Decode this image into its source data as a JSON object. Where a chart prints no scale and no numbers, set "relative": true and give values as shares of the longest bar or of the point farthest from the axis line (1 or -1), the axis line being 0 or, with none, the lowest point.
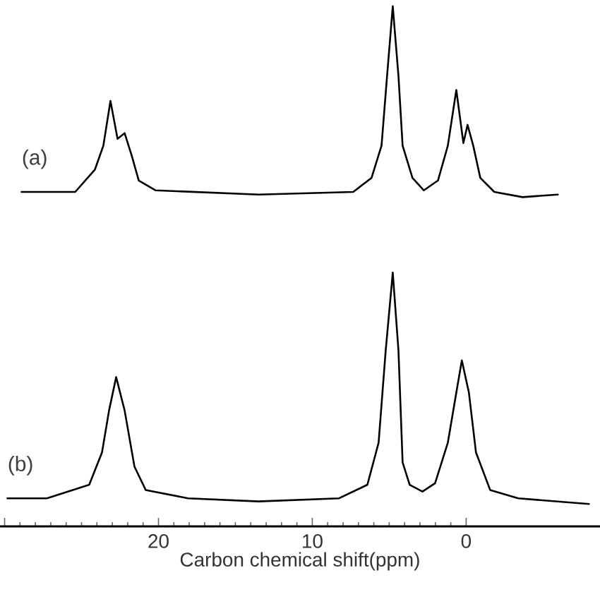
{
  "chart_data": {
    "type": "line",
    "relative": true,
    "xlabel": "Carbon chemical shift(ppm)",
    "xlim": [
      30.3,
      -8.7
    ],
    "xticks": [
      {
        "value": 30,
        "label": null
      },
      20,
      10,
      0
    ],
    "legend": false,
    "marker": "none",
    "line_style": "solid",
    "series": [
      {
        "name": "(a)",
        "color": "#000000",
        "x": [
          28.9,
          25.41,
          24.13,
          23.58,
          23.12,
          22.66,
          22.2,
          21.74,
          21.28,
          20.18,
          13.49,
          7.34,
          6.15,
          5.5,
          5.14,
          4.77,
          4.4,
          4.13,
          3.49,
          2.75,
          1.83,
          1.19,
          0.64,
          0.18,
          -0.09,
          -0.46,
          -0.92,
          -1.83,
          -3.67,
          -5.96
        ],
        "values": [
          0.643,
          0.643,
          0.686,
          0.732,
          0.818,
          0.745,
          0.756,
          0.713,
          0.665,
          0.646,
          0.638,
          0.643,
          0.67,
          0.732,
          0.866,
          1.0,
          0.866,
          0.732,
          0.67,
          0.646,
          0.665,
          0.732,
          0.839,
          0.737,
          0.772,
          0.732,
          0.67,
          0.643,
          0.633,
          0.638
        ]
      },
      {
        "name": "(b)",
        "color": "#000000",
        "x": [
          29.82,
          27.25,
          24.5,
          23.67,
          23.21,
          22.75,
          22.2,
          21.56,
          20.83,
          18.07,
          13.49,
          8.26,
          6.42,
          5.69,
          5.23,
          4.77,
          4.4,
          4.13,
          3.67,
          2.84,
          2.02,
          1.19,
          0.64,
          0.28,
          -0.18,
          -0.64,
          -1.56,
          -3.39,
          -7.98
        ],
        "values": [
          0.054,
          0.054,
          0.08,
          0.142,
          0.223,
          0.287,
          0.223,
          0.115,
          0.07,
          0.054,
          0.048,
          0.054,
          0.08,
          0.161,
          0.338,
          0.488,
          0.338,
          0.123,
          0.08,
          0.067,
          0.083,
          0.161,
          0.257,
          0.319,
          0.257,
          0.142,
          0.07,
          0.054,
          0.043
        ]
      }
    ]
  }
}
